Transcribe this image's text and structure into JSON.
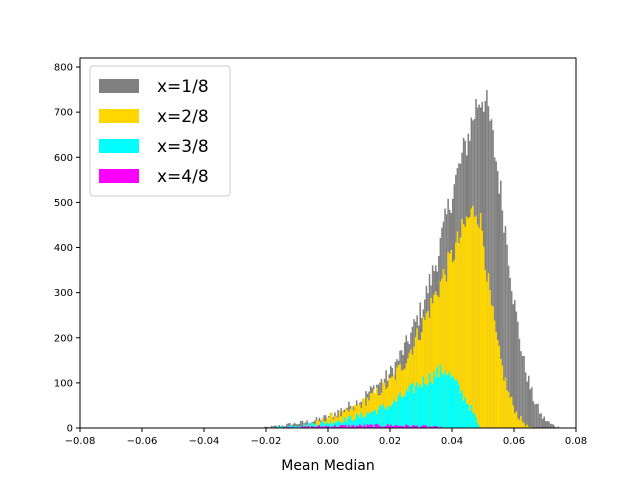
{
  "chart_data": {
    "type": "histogram",
    "title": "",
    "xlabel": "Mean Median",
    "ylabel": "",
    "xlim": [
      -0.08,
      0.08
    ],
    "ylim": [
      0,
      820
    ],
    "x_ticks": [
      "−0.08",
      "−0.06",
      "−0.04",
      "−0.02",
      "0.00",
      "0.02",
      "0.04",
      "0.06",
      "0.08"
    ],
    "y_ticks": [
      "0",
      "100",
      "200",
      "300",
      "400",
      "500",
      "600",
      "700",
      "800"
    ],
    "grid": false,
    "legend_position": "top-left",
    "bin_width": 0.0005,
    "series": [
      {
        "name": "x=1/8",
        "color": "#808080",
        "profile": [
          {
            "x": -0.022,
            "y": 0
          },
          {
            "x": -0.015,
            "y": 5
          },
          {
            "x": -0.005,
            "y": 15
          },
          {
            "x": 0.0,
            "y": 25
          },
          {
            "x": 0.01,
            "y": 60
          },
          {
            "x": 0.02,
            "y": 120
          },
          {
            "x": 0.025,
            "y": 180
          },
          {
            "x": 0.03,
            "y": 260
          },
          {
            "x": 0.035,
            "y": 370
          },
          {
            "x": 0.04,
            "y": 520
          },
          {
            "x": 0.045,
            "y": 640
          },
          {
            "x": 0.048,
            "y": 720
          },
          {
            "x": 0.05,
            "y": 740
          },
          {
            "x": 0.052,
            "y": 690
          },
          {
            "x": 0.055,
            "y": 560
          },
          {
            "x": 0.058,
            "y": 400
          },
          {
            "x": 0.06,
            "y": 280
          },
          {
            "x": 0.063,
            "y": 150
          },
          {
            "x": 0.066,
            "y": 70
          },
          {
            "x": 0.069,
            "y": 25
          },
          {
            "x": 0.072,
            "y": 8
          },
          {
            "x": 0.075,
            "y": 0
          }
        ]
      },
      {
        "name": "x=2/8",
        "color": "#ffd700",
        "profile": [
          {
            "x": -0.01,
            "y": 0
          },
          {
            "x": -0.002,
            "y": 15
          },
          {
            "x": 0.0,
            "y": 25
          },
          {
            "x": 0.005,
            "y": 30
          },
          {
            "x": 0.01,
            "y": 50
          },
          {
            "x": 0.02,
            "y": 100
          },
          {
            "x": 0.025,
            "y": 150
          },
          {
            "x": 0.03,
            "y": 220
          },
          {
            "x": 0.035,
            "y": 300
          },
          {
            "x": 0.04,
            "y": 380
          },
          {
            "x": 0.045,
            "y": 460
          },
          {
            "x": 0.048,
            "y": 490
          },
          {
            "x": 0.05,
            "y": 430
          },
          {
            "x": 0.052,
            "y": 300
          },
          {
            "x": 0.055,
            "y": 170
          },
          {
            "x": 0.058,
            "y": 80
          },
          {
            "x": 0.061,
            "y": 30
          },
          {
            "x": 0.064,
            "y": 5
          },
          {
            "x": 0.066,
            "y": 0
          }
        ]
      },
      {
        "name": "x=3/8",
        "color": "#00ffff",
        "profile": [
          {
            "x": -0.02,
            "y": 0
          },
          {
            "x": -0.01,
            "y": 6
          },
          {
            "x": 0.0,
            "y": 12
          },
          {
            "x": 0.01,
            "y": 25
          },
          {
            "x": 0.02,
            "y": 50
          },
          {
            "x": 0.025,
            "y": 75
          },
          {
            "x": 0.03,
            "y": 100
          },
          {
            "x": 0.035,
            "y": 120
          },
          {
            "x": 0.038,
            "y": 130
          },
          {
            "x": 0.04,
            "y": 110
          },
          {
            "x": 0.043,
            "y": 80
          },
          {
            "x": 0.046,
            "y": 45
          },
          {
            "x": 0.048,
            "y": 15
          },
          {
            "x": 0.049,
            "y": 0
          }
        ]
      },
      {
        "name": "x=4/8",
        "color": "#ff00ff",
        "profile": [
          {
            "x": -0.02,
            "y": 0
          },
          {
            "x": -0.01,
            "y": 2
          },
          {
            "x": 0.0,
            "y": 4
          },
          {
            "x": 0.01,
            "y": 5
          },
          {
            "x": 0.02,
            "y": 6
          },
          {
            "x": 0.03,
            "y": 4
          },
          {
            "x": 0.035,
            "y": 2
          },
          {
            "x": 0.038,
            "y": 0
          }
        ]
      }
    ]
  }
}
